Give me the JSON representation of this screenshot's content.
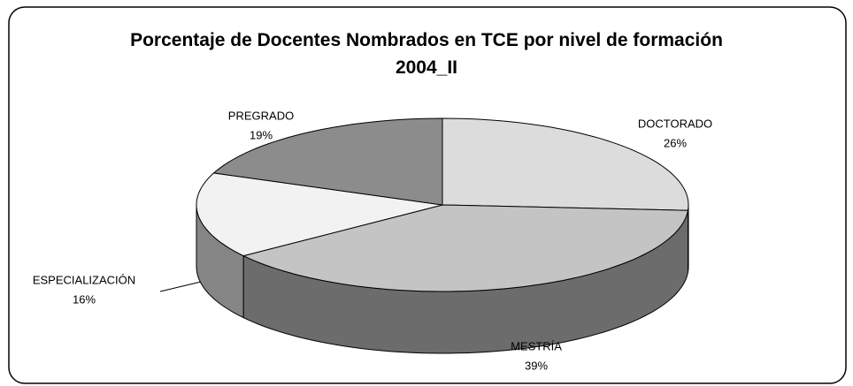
{
  "chart_data": {
    "type": "pie3d",
    "title": "Porcentaje de Docentes Nombrados en TCE por nivel de formación 2004_II",
    "categories": [
      "DOCTORADO",
      "MESTRÍA",
      "ESPECIALIZACIÓN",
      "PREGRADO"
    ],
    "values": [
      26,
      39,
      16,
      19
    ],
    "value_labels": [
      "26%",
      "39%",
      "16%",
      "19%"
    ],
    "colors": [
      "#dcdcdc",
      "#c4c4c4",
      "#f2f2f2",
      "#8c8c8c"
    ]
  }
}
